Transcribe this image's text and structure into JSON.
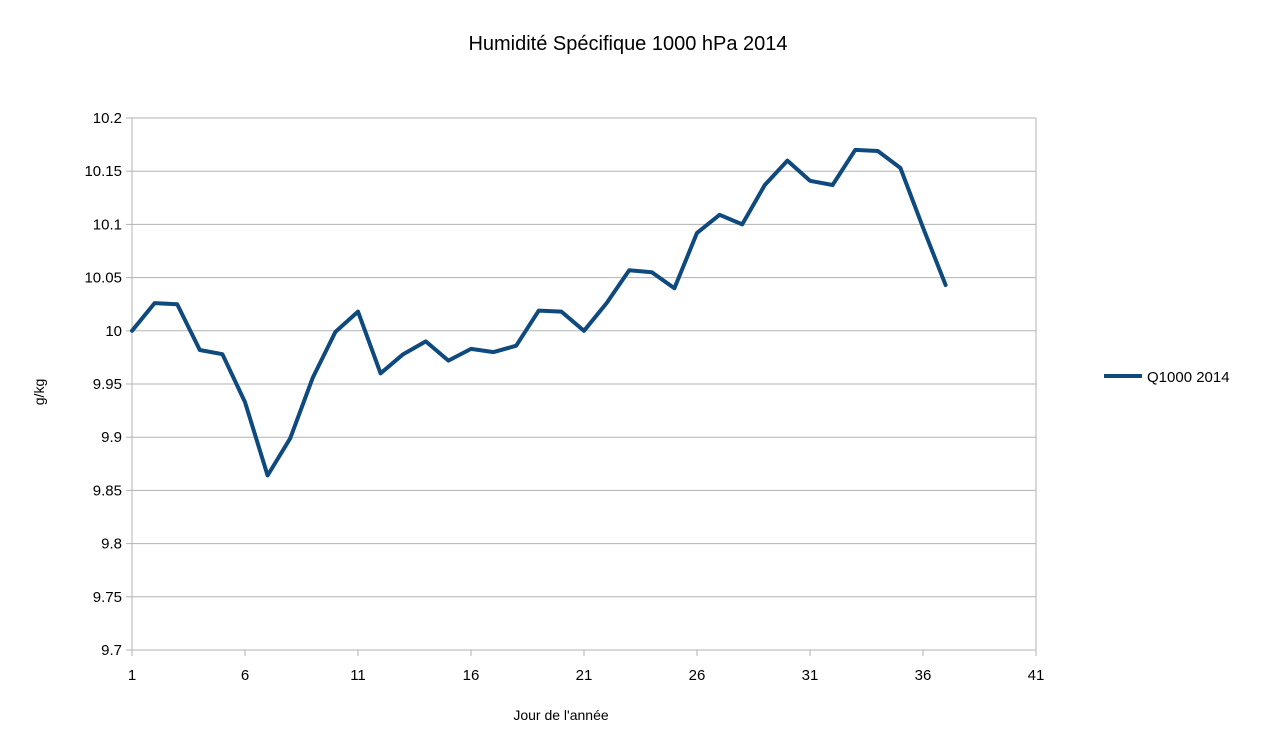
{
  "chart_data": {
    "type": "line",
    "title": "Humidité Spécifique 1000 hPa 2014",
    "xlabel": "Jour de l'année",
    "ylabel": "g/kg",
    "xlim": [
      1,
      41
    ],
    "ylim": [
      9.7,
      10.2
    ],
    "x_ticks": [
      "1",
      "6",
      "11",
      "16",
      "21",
      "26",
      "31",
      "36",
      "41"
    ],
    "y_ticks": [
      "10.2",
      "10.15",
      "10.1",
      "10.05",
      "10",
      "9.95",
      "9.9",
      "9.85",
      "9.8",
      "9.75",
      "9.7"
    ],
    "grid": "horizontal",
    "legend": "right",
    "series": [
      {
        "name": "Q1000 2014",
        "color": "#0e4a7e",
        "x": [
          1,
          2,
          3,
          4,
          5,
          6,
          7,
          8,
          9,
          10,
          11,
          12,
          13,
          14,
          15,
          16,
          17,
          18,
          19,
          20,
          21,
          22,
          23,
          24,
          25,
          26,
          27,
          28,
          29,
          30,
          31,
          32,
          33,
          34,
          35,
          36,
          37
        ],
        "values": [
          10.0,
          10.026,
          10.025,
          9.982,
          9.978,
          9.933,
          9.864,
          9.899,
          9.956,
          9.999,
          10.018,
          9.96,
          9.978,
          9.99,
          9.972,
          9.983,
          9.98,
          9.986,
          10.019,
          10.018,
          10.0,
          10.026,
          10.057,
          10.055,
          10.04,
          10.092,
          10.109,
          10.1,
          10.137,
          10.16,
          10.141,
          10.137,
          10.17,
          10.169,
          10.153,
          10.097,
          10.043
        ]
      }
    ]
  }
}
